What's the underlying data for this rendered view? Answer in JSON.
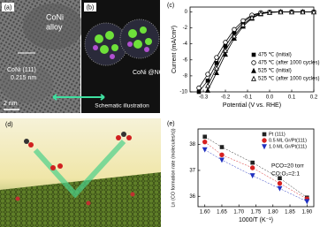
{
  "panels": {
    "a": {
      "label": "(a)",
      "alloy": [
        "CoNi",
        "alloy"
      ],
      "plane": "CoNi (111)",
      "spacing": "0.215 nm",
      "scale": "2 nm"
    },
    "b": {
      "label": "(b)",
      "name": "CoNi @NC",
      "caption": "Schematic illustration"
    },
    "d": {
      "label": "(d)"
    }
  },
  "chart_data": [
    {
      "type": "line",
      "label": "(c)",
      "x_label": "Potential (V vs. RHE)",
      "y_label": "Current (mA/cm²)",
      "x": [
        -0.32,
        -0.28,
        -0.24,
        -0.2,
        -0.16,
        -0.12,
        -0.08,
        -0.04,
        0,
        0.05,
        0.1,
        0.15,
        0.2
      ],
      "xlim": [
        -0.36,
        0.2
      ],
      "ylim": [
        -10,
        0.6
      ],
      "xticks": [
        -0.3,
        -0.2,
        -0.1,
        {
          "value": 0,
          "label": "0.0"
        },
        0.1,
        0.2
      ],
      "yticks": [
        0,
        -2,
        -4,
        -6,
        -8,
        -10
      ],
      "legend": "lower right",
      "series": [
        {
          "name": "475 ℃ (initial)",
          "color": "#000000",
          "marker": "square",
          "values": [
            -10,
            -8.6,
            -6.4,
            -4.3,
            -2.6,
            -1.3,
            -0.5,
            -0.15,
            -0.05,
            0,
            0,
            0,
            0
          ]
        },
        {
          "name": "475 ℃ (after 1000 cycles)",
          "color": "#000000",
          "marker": "circle-open",
          "values": [
            -9.5,
            -7.8,
            -5.7,
            -3.8,
            -2.2,
            -1.1,
            -0.4,
            -0.1,
            -0.03,
            0,
            0,
            0,
            0
          ]
        },
        {
          "name": "525 ℃ (initial)",
          "color": "#000000",
          "marker": "triangle",
          "values": [
            null,
            -9.8,
            -7.6,
            -5.3,
            -3.3,
            -1.8,
            -0.8,
            -0.25,
            -0.07,
            0,
            0,
            0,
            0
          ]
        },
        {
          "name": "525 ℃ (after 1000 cycles)",
          "color": "#000000",
          "marker": "triangle-open",
          "values": [
            null,
            -9.2,
            -7.0,
            -4.8,
            -3.0,
            -1.6,
            -0.7,
            -0.2,
            -0.05,
            0,
            0,
            0,
            0
          ]
        }
      ]
    },
    {
      "type": "scatter",
      "label": "(e)",
      "x_label": "1000/T (K⁻¹)",
      "y_label": "Ln (CO formation rate (molecules/s))",
      "annotations": [
        "PCO=20 torr",
        "CO:O₂=2:1"
      ],
      "x": [
        1.6,
        1.65,
        1.74,
        1.82,
        1.9
      ],
      "xlim": [
        1.58,
        1.92
      ],
      "ylim": [
        35.6,
        38.6
      ],
      "xticks": [
        {
          "value": 1.6,
          "label": "1.60"
        },
        {
          "value": 1.65,
          "label": "1.65"
        },
        {
          "value": 1.7,
          "label": "1.70"
        },
        {
          "value": 1.75,
          "label": "1.75"
        },
        {
          "value": 1.8,
          "label": "1.80"
        },
        {
          "value": 1.85,
          "label": "1.85"
        },
        {
          "value": 1.9,
          "label": "1.90"
        }
      ],
      "yticks": [
        36,
        37,
        38
      ],
      "legend": "upper right",
      "series": [
        {
          "name": "Pt (111)",
          "color": "#222222",
          "marker": "square",
          "values": [
            38.3,
            37.9,
            37.3,
            36.7,
            35.95
          ]
        },
        {
          "name": "0.5 ML Gr/Pt(111)",
          "color": "#d62020",
          "marker": "circle",
          "values": [
            38.1,
            37.6,
            37.1,
            36.5,
            35.9
          ]
        },
        {
          "name": "1.0 ML Gr/Pt(111)",
          "color": "#2030c0",
          "marker": "triangle-down",
          "values": [
            37.8,
            37.4,
            36.8,
            36.3,
            35.8
          ]
        }
      ]
    }
  ]
}
